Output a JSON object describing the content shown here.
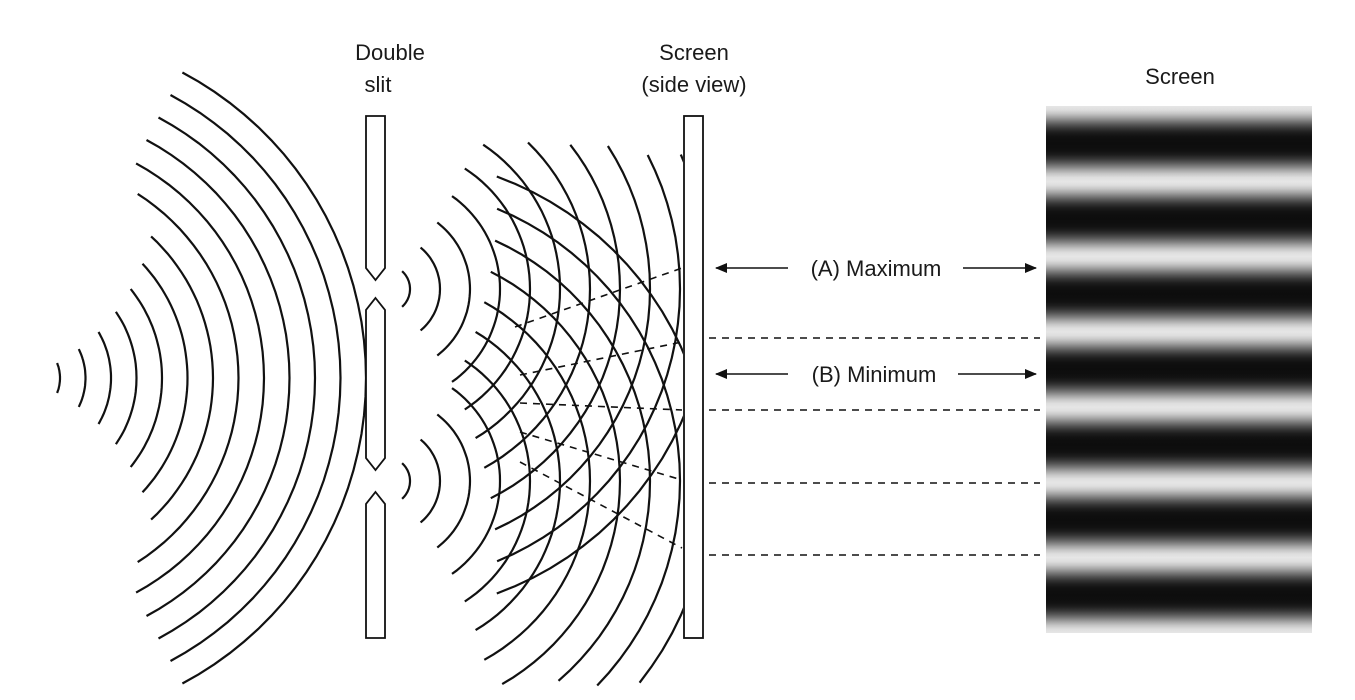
{
  "labels": {
    "double_slit_line1": "Double",
    "double_slit_line2": "slit",
    "screen_side_line1": "Screen",
    "screen_side_line2": "(side view)",
    "screen_label": "Screen",
    "maximum": "(A) Maximum",
    "minimum": "(B) Minimum"
  },
  "colors": {
    "ink": "#111111",
    "fringe_dark": "#0d0d0d",
    "fringe_light": "#e6e6e6"
  }
}
